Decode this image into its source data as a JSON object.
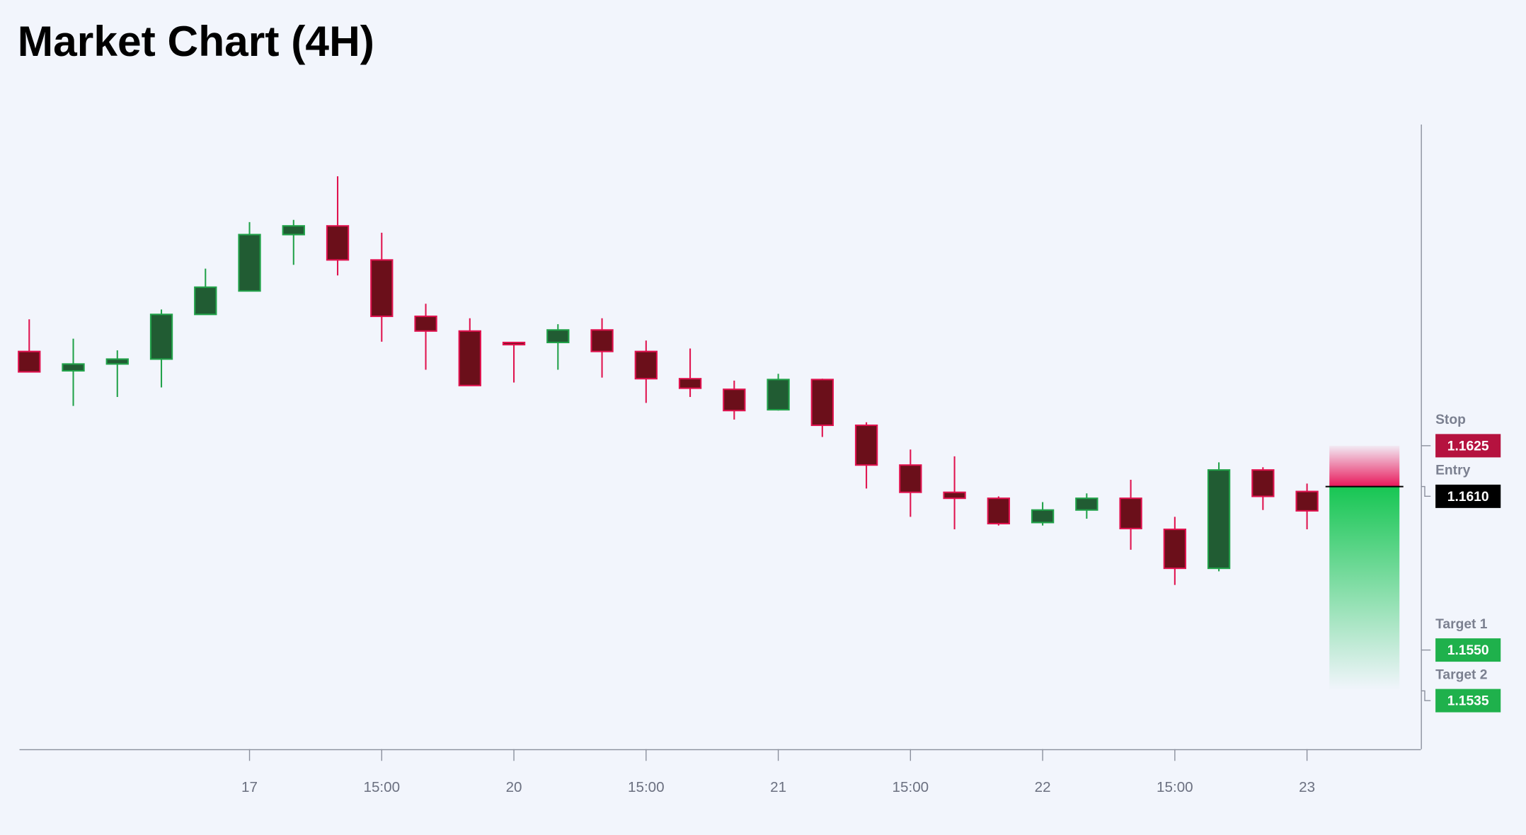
{
  "chart_data": {
    "type": "candlestick",
    "title": "Market Chart (4H)",
    "categories": [
      null,
      null,
      null,
      null,
      null,
      "17",
      null,
      null,
      "15:00",
      null,
      null,
      "20",
      null,
      null,
      "15:00",
      null,
      null,
      "21",
      null,
      null,
      "15:00",
      null,
      null,
      "22",
      null,
      null,
      "15:00",
      null,
      null,
      "23"
    ],
    "open": [
      1.16596,
      1.16525,
      1.1655,
      1.16568,
      1.16732,
      1.16818,
      1.17025,
      1.17057,
      1.16932,
      1.16725,
      1.16671,
      1.16629,
      1.16629,
      1.16675,
      1.16596,
      1.16496,
      1.16457,
      1.16382,
      1.16493,
      1.16325,
      1.16179,
      1.16079,
      1.16057,
      1.15968,
      1.16014,
      1.16057,
      1.15943,
      1.158,
      1.16161,
      1.16082
    ],
    "high": [
      1.16714,
      1.16643,
      1.166,
      1.1675,
      1.169,
      1.17071,
      1.17079,
      1.17239,
      1.17032,
      1.16771,
      1.16718,
      1.16629,
      1.16696,
      1.16718,
      1.16636,
      1.16607,
      1.16489,
      1.16514,
      1.16496,
      1.16336,
      1.16236,
      1.16211,
      1.16064,
      1.16043,
      1.16075,
      1.16125,
      1.15989,
      1.16189,
      1.16171,
      1.16111
    ],
    "low": [
      1.16521,
      1.16396,
      1.16429,
      1.16464,
      1.16732,
      1.16818,
      1.16914,
      1.16875,
      1.16632,
      1.16529,
      1.16471,
      1.16482,
      1.16529,
      1.165,
      1.16407,
      1.16429,
      1.16346,
      1.16379,
      1.16282,
      1.16093,
      1.15989,
      1.15943,
      1.15957,
      1.15957,
      1.15982,
      1.15868,
      1.15739,
      1.15789,
      1.16014,
      1.15943
    ],
    "close": [
      1.16521,
      1.1655,
      1.16568,
      1.16732,
      1.16832,
      1.17025,
      1.17057,
      1.16932,
      1.16725,
      1.16671,
      1.16471,
      1.16621,
      1.16675,
      1.16596,
      1.16496,
      1.16461,
      1.16379,
      1.16493,
      1.16325,
      1.16179,
      1.16079,
      1.16057,
      1.15964,
      1.16014,
      1.16057,
      1.15946,
      1.158,
      1.16161,
      1.16064,
      1.16011
    ],
    "up_color": "#22a24a",
    "up_fill": "#215c33",
    "down_color": "#e0134f",
    "down_fill": "#6b0f1a",
    "ylim": [
      1.15136,
      1.17429
    ],
    "levels": [
      {
        "name": "Stop",
        "price": 1.1625,
        "color": "#b5123f"
      },
      {
        "name": "Entry",
        "price": {
          "value": 1.161,
          "label": "1.1610"
        },
        "color": "#000000"
      },
      {
        "name": "Target 1",
        "price": {
          "value": 1.155,
          "label": "1.1550"
        },
        "color": "#1fb14c"
      },
      {
        "name": "Target 2",
        "price": 1.1535,
        "color": "#1fb14c"
      }
    ]
  }
}
